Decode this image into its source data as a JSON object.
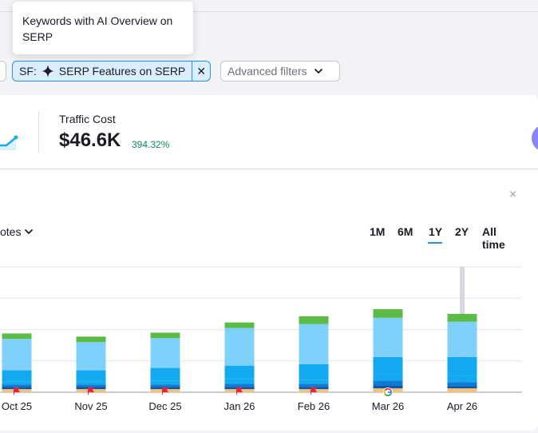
{
  "tooltip": {
    "text": "Keywords with AI Overview on SERP"
  },
  "filters": {
    "sf_prefix": "SF:",
    "sf_label": "SERP Features on SERP",
    "sf_close": "✕",
    "advanced_label": "Advanced filters"
  },
  "metric": {
    "label": "Traffic Cost",
    "value": "$46.6K",
    "change": "394.32%"
  },
  "panel": {
    "close": "×",
    "notes_label": "otes"
  },
  "ranges": [
    {
      "label": "1M",
      "active": false
    },
    {
      "label": "6M",
      "active": false
    },
    {
      "label": "1Y",
      "active": true
    },
    {
      "label": "2Y",
      "active": false
    },
    {
      "label": "All time",
      "active": false
    }
  ],
  "colors": {
    "accent": "#2b8fef",
    "green": "#5cbb46",
    "light_blue": "#7fd0fb",
    "mid_blue": "#12a9f0",
    "dark_blue": "#0b7bd4",
    "navy": "#0957a8",
    "orange": "#f3c17a",
    "flag_red": "#e8233c"
  },
  "chart_data": {
    "type": "bar",
    "stacked": true,
    "categories": [
      "Oct 25",
      "Nov 25",
      "Dec 25",
      "Jan 26",
      "Feb 26",
      "Mar 26",
      "Apr 26"
    ],
    "ylim": [
      0,
      160
    ],
    "grid": true,
    "series": [
      {
        "values": [
          4,
          4,
          4,
          4,
          4,
          5,
          5
        ]
      },
      {
        "values": [
          3,
          3,
          3,
          3,
          3,
          4,
          3
        ]
      },
      {
        "values": [
          3,
          3,
          3,
          4,
          4,
          6,
          5
        ]
      },
      {
        "values": [
          4,
          4,
          5,
          6,
          5,
          8,
          8
        ]
      },
      {
        "values": [
          14,
          14,
          16,
          17,
          20,
          22,
          24
        ]
      },
      {
        "values": [
          40,
          36,
          38,
          48,
          51,
          50,
          45
        ]
      },
      {
        "values": [
          7,
          7,
          7,
          7,
          10,
          11,
          10
        ]
      }
    ],
    "markers": [
      "flag",
      "flag",
      "flag",
      "flag",
      "flag",
      "google",
      "none"
    ]
  }
}
